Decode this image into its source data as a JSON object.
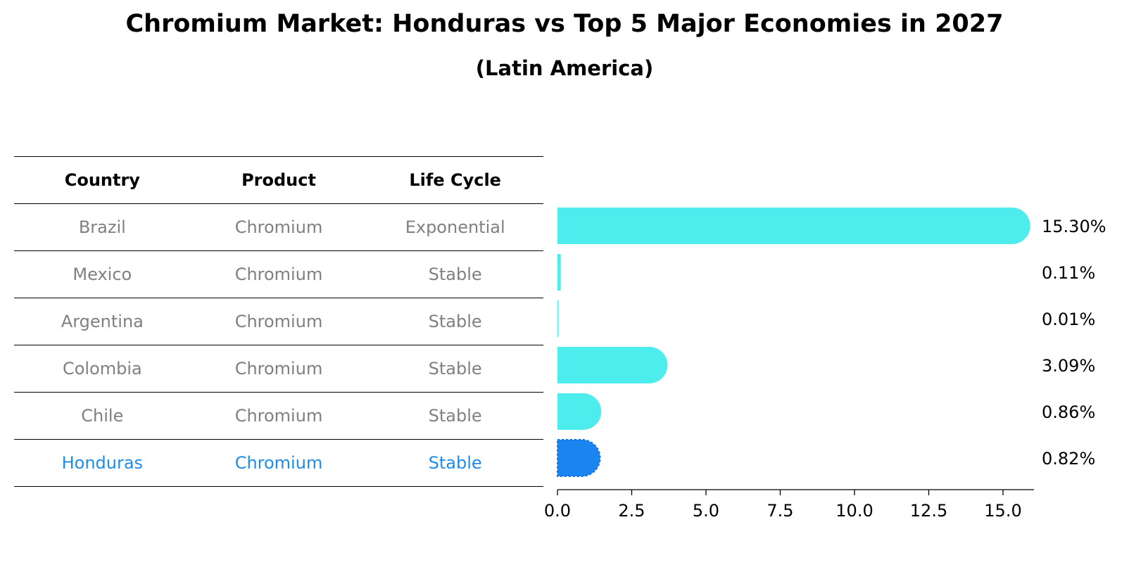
{
  "title": "Chromium Market: Honduras vs Top 5 Major Economies in 2027",
  "subtitle": "(Latin America)",
  "table": {
    "headers": [
      "Country",
      "Product",
      "Life Cycle"
    ],
    "rows": [
      {
        "country": "Brazil",
        "product": "Chromium",
        "life_cycle": "Exponential"
      },
      {
        "country": "Mexico",
        "product": "Chromium",
        "life_cycle": "Stable"
      },
      {
        "country": "Argentina",
        "product": "Chromium",
        "life_cycle": "Stable"
      },
      {
        "country": "Colombia",
        "product": "Chromium",
        "life_cycle": "Stable"
      },
      {
        "country": "Chile",
        "product": "Chromium",
        "life_cycle": "Stable"
      },
      {
        "country": "Honduras",
        "product": "Chromium",
        "life_cycle": "Stable"
      }
    ]
  },
  "colors": {
    "bar": "#4deded",
    "highlight": "#1a85f0",
    "muted_text": "#808080",
    "highlight_text": "#1f8ce6"
  },
  "chart_data": {
    "type": "bar",
    "orientation": "horizontal",
    "categories": [
      "Brazil",
      "Mexico",
      "Argentina",
      "Colombia",
      "Chile",
      "Honduras"
    ],
    "values": [
      15.3,
      0.11,
      0.01,
      3.09,
      0.86,
      0.82
    ],
    "value_labels": [
      "15.30%",
      "0.11%",
      "0.01%",
      "3.09%",
      "0.86%",
      "0.82%"
    ],
    "highlight_category": "Honduras",
    "xlim": [
      0,
      16.1
    ],
    "xticks": [
      0.0,
      2.5,
      5.0,
      7.5,
      10.0,
      12.5,
      15.0
    ],
    "xtick_labels": [
      "0.0",
      "2.5",
      "5.0",
      "7.5",
      "10.0",
      "12.5",
      "15.0"
    ],
    "grid": false
  }
}
